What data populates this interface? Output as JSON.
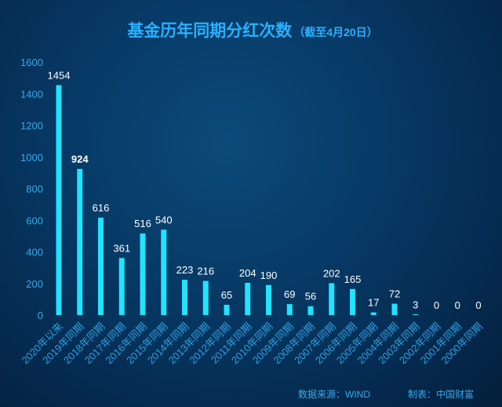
{
  "chart_data": {
    "type": "bar",
    "title": "基金历年同期分红次数",
    "subtitle": "（截至4月20日）",
    "categories": [
      "2020年以来",
      "2019年同期",
      "2018年同期",
      "2017年同期",
      "2016年同期",
      "2015年同期",
      "2014年同期",
      "2013年同期",
      "2012年同期",
      "2011年同期",
      "2010年同期",
      "2009年同期",
      "2008年同期",
      "2007年同期",
      "2006年同期",
      "2005年同期",
      "2004年同期",
      "2003年同期",
      "2002年同期",
      "2001年同期",
      "2000年同期"
    ],
    "values": [
      1454,
      924,
      616,
      361,
      516,
      540,
      223,
      216,
      65,
      204,
      190,
      69,
      56,
      202,
      165,
      17,
      72,
      3,
      0,
      0,
      0
    ],
    "data_labels": [
      "1454",
      "924",
      "616",
      "361",
      "516",
      "540",
      "223",
      "216",
      "65",
      "204",
      "190",
      "69",
      "56",
      "202",
      "165",
      "17",
      "72",
      "3",
      "0",
      "0",
      "0"
    ],
    "yticks": [
      "0",
      "200",
      "400",
      "600",
      "800",
      "1000",
      "1200",
      "1400",
      "1600"
    ],
    "ylim": [
      0,
      1600
    ],
    "xlabel": "",
    "ylabel": "",
    "grid": false,
    "colors": {
      "bar": "#20e3ff",
      "value_label": "#ffffff",
      "axis_text": "#3aa9e6",
      "title": "#2ab0ff"
    }
  },
  "footer": {
    "source": "数据来源：WIND",
    "made_by": "制表：中国财富"
  }
}
